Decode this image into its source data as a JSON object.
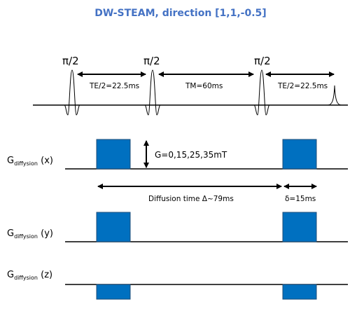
{
  "title": "DW-STEAM, direction [1,1,-0.5]",
  "colors": {
    "title": "#4472c4",
    "gradient": "#0070c0",
    "gradient_stroke": "#1f4e79",
    "line": "#000000"
  },
  "pulses": [
    {
      "label": "π/2"
    },
    {
      "label": "π/2"
    },
    {
      "label": "π/2"
    }
  ],
  "intervals": {
    "te_first": "TE/2=22.5ms",
    "tm": "TM=60ms",
    "te_second": "TE/2=22.5ms"
  },
  "gradient_amplitude": "G=0,15,25,35mT",
  "diffusion_time": "Diffusion time Δ~79ms",
  "delta": "δ=15ms",
  "axes": [
    {
      "base": "G",
      "sub": "diffysion",
      "suffix": " (x)"
    },
    {
      "base": "G",
      "sub": "diffysion",
      "suffix": " (y)"
    },
    {
      "base": "G",
      "sub": "diffysion",
      "suffix": " (z)"
    }
  ]
}
